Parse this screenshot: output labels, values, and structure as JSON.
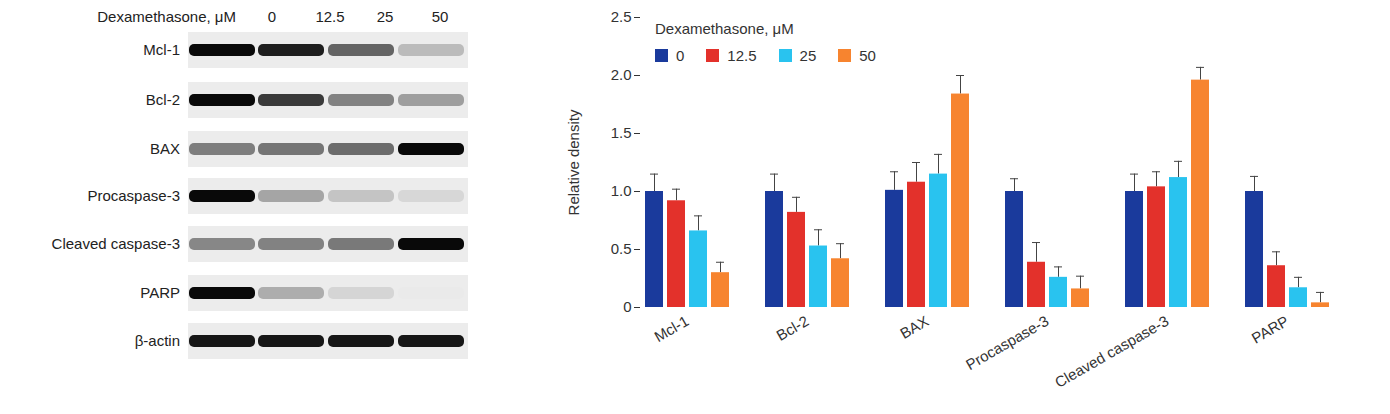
{
  "blot": {
    "title": "Dexamethasone, μM",
    "lanes": [
      "0",
      "12.5",
      "25",
      "50"
    ],
    "rows": [
      "Mcl-1",
      "Bcl-2",
      "BAX",
      "Procaspase-3",
      "Cleaved caspase-3",
      "PARP",
      "β-actin"
    ]
  },
  "chart_data": {
    "type": "bar",
    "y_label": "Relative density",
    "legend_title": "Dexamethasone, μM",
    "legend": "upper left",
    "categories": [
      "Mcl-1",
      "Bcl-2",
      "BAX",
      "Procaspase-3",
      "Cleaved caspase-3",
      "PARP"
    ],
    "series": [
      {
        "name": "0",
        "color": "#1a3a9c",
        "values": [
          1.0,
          1.0,
          1.01,
          1.0,
          1.0,
          1.0
        ],
        "errors": [
          0.15,
          0.15,
          0.16,
          0.11,
          0.15,
          0.13
        ]
      },
      {
        "name": "12.5",
        "color": "#e3312b",
        "values": [
          0.92,
          0.82,
          1.08,
          0.39,
          1.04,
          0.36
        ],
        "errors": [
          0.1,
          0.13,
          0.17,
          0.17,
          0.13,
          0.12
        ]
      },
      {
        "name": "25",
        "color": "#29c3ef",
        "values": [
          0.66,
          0.53,
          1.15,
          0.26,
          1.12,
          0.17
        ],
        "errors": [
          0.13,
          0.14,
          0.17,
          0.09,
          0.14,
          0.09
        ]
      },
      {
        "name": "50",
        "color": "#f7842f",
        "values": [
          0.3,
          0.42,
          1.84,
          0.16,
          1.96,
          0.04
        ],
        "errors": [
          0.09,
          0.13,
          0.16,
          0.11,
          0.11,
          0.09
        ]
      }
    ],
    "ylim": [
      0,
      2.5
    ],
    "yticks": [
      0,
      0.5,
      {
        "value": 1.0,
        "label": "1.0"
      },
      1.5,
      {
        "value": 2.0,
        "label": "2.0"
      },
      2.5
    ],
    "grid": false
  }
}
